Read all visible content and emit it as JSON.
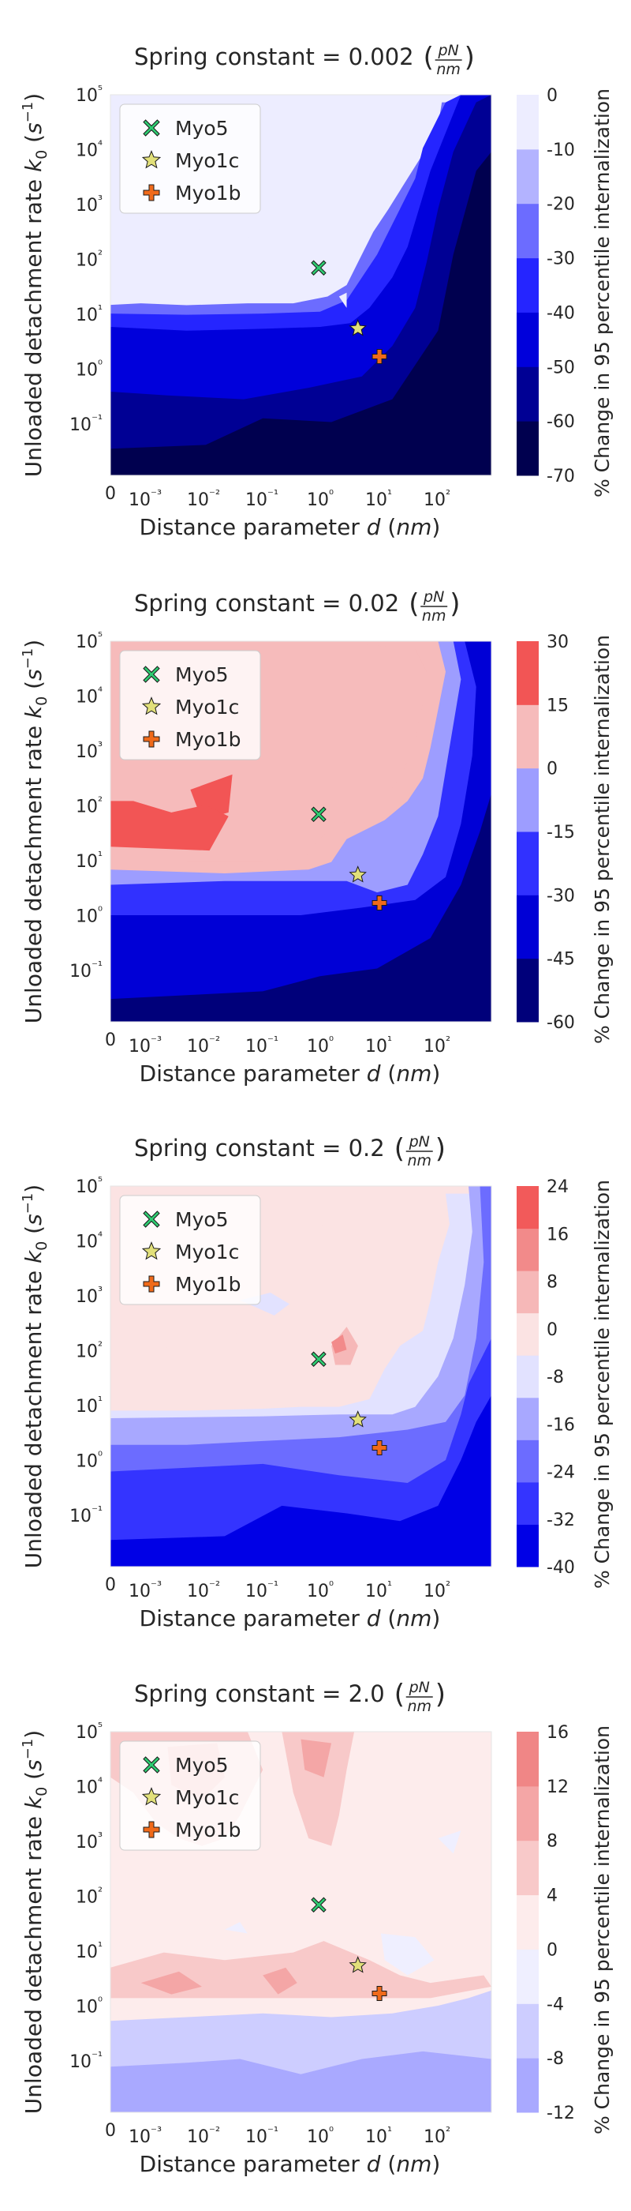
{
  "chart_data": [
    {
      "type": "heatmap",
      "subtype": "filled-contour",
      "title": "Spring constant = 0.002 (pN/nm)",
      "title_prefix": "Spring constant = 0.002",
      "unit_num": "pN",
      "unit_den": "nm",
      "xlabel": "Distance parameter d (nm)",
      "ylabel": "Unloaded detachment rate k0 (s⁻¹)",
      "colorbar_label": "% Change in 95 percentile internalization",
      "x_scale": "symlog",
      "y_scale": "log",
      "xlim": [
        0,
        400
      ],
      "ylim": [
        0.01,
        100000
      ],
      "x_ticks": [
        "0",
        "10⁻³",
        "10⁻²",
        "10⁻¹",
        "10⁰",
        "10¹",
        "10²"
      ],
      "y_ticks": [
        "10⁻¹",
        "10⁰",
        "10¹",
        "10²",
        "10³",
        "10⁴",
        "10⁵"
      ],
      "levels": [
        -70,
        -60,
        -50,
        -40,
        -30,
        -20,
        -10,
        0
      ],
      "colorbar_ticks": [
        "-70",
        "-60",
        "-50",
        "-40",
        "-30",
        "-20",
        "-10",
        "0"
      ],
      "level_colors": [
        "#00004f",
        "#000094",
        "#0000db",
        "#2525ff",
        "#6c6cff",
        "#b3b3ff",
        "#ededff"
      ],
      "grid": false,
      "legend_position": "upper-left",
      "legend": [
        {
          "name": "Myo5",
          "marker": "x-marker-icon",
          "color": "#2ecc71"
        },
        {
          "name": "Myo1c",
          "marker": "star-marker-icon",
          "color": "#e2e07a"
        },
        {
          "name": "Myo1b",
          "marker": "plus-marker-icon",
          "color": "#f06a1a"
        }
      ],
      "points": [
        {
          "name": "Myo5",
          "d": 1.0,
          "k0": 70
        },
        {
          "name": "Myo1c",
          "d": 4.7,
          "k0": 5.5
        },
        {
          "name": "Myo1b",
          "d": 11,
          "k0": 1.7
        }
      ]
    },
    {
      "type": "heatmap",
      "subtype": "filled-contour",
      "title": "Spring constant = 0.02 (pN/nm)",
      "title_prefix": "Spring constant = 0.02",
      "unit_num": "pN",
      "unit_den": "nm",
      "xlabel": "Distance parameter d (nm)",
      "ylabel": "Unloaded detachment rate k0 (s⁻¹)",
      "colorbar_label": "% Change in 95 percentile internalization",
      "x_scale": "symlog",
      "y_scale": "log",
      "xlim": [
        0,
        400
      ],
      "ylim": [
        0.01,
        100000
      ],
      "x_ticks": [
        "0",
        "10⁻³",
        "10⁻²",
        "10⁻¹",
        "10⁰",
        "10¹",
        "10²"
      ],
      "y_ticks": [
        "10⁻¹",
        "10⁰",
        "10¹",
        "10²",
        "10³",
        "10⁴",
        "10⁵"
      ],
      "levels": [
        -60,
        -45,
        -30,
        -15,
        0,
        15,
        30
      ],
      "colorbar_ticks": [
        "-60",
        "-45",
        "-30",
        "-15",
        "0",
        "15",
        "30"
      ],
      "level_colors": [
        "#00007a",
        "#0000d6",
        "#3131ff",
        "#9d9dff",
        "#f6bbbb",
        "#f25555"
      ],
      "grid": false,
      "legend_position": "upper-left",
      "legend": [
        {
          "name": "Myo5",
          "marker": "x-marker-icon",
          "color": "#2ecc71"
        },
        {
          "name": "Myo1c",
          "marker": "star-marker-icon",
          "color": "#e2e07a"
        },
        {
          "name": "Myo1b",
          "marker": "plus-marker-icon",
          "color": "#f06a1a"
        }
      ],
      "points": [
        {
          "name": "Myo5",
          "d": 1.0,
          "k0": 70
        },
        {
          "name": "Myo1c",
          "d": 4.7,
          "k0": 5.5
        },
        {
          "name": "Myo1b",
          "d": 11,
          "k0": 1.7
        }
      ]
    },
    {
      "type": "heatmap",
      "subtype": "filled-contour",
      "title": "Spring constant = 0.2 (pN/nm)",
      "title_prefix": "Spring constant = 0.2",
      "unit_num": "pN",
      "unit_den": "nm",
      "xlabel": "Distance parameter d (nm)",
      "ylabel": "Unloaded detachment rate k0 (s⁻¹)",
      "colorbar_label": "% Change in 95 percentile internalization",
      "x_scale": "symlog",
      "y_scale": "log",
      "xlim": [
        0,
        400
      ],
      "ylim": [
        0.01,
        100000
      ],
      "x_ticks": [
        "0",
        "10⁻³",
        "10⁻²",
        "10⁻¹",
        "10⁰",
        "10¹",
        "10²"
      ],
      "y_ticks": [
        "10⁻¹",
        "10⁰",
        "10¹",
        "10²",
        "10³",
        "10⁴",
        "10⁵"
      ],
      "levels": [
        -40,
        -32,
        -24,
        -16,
        -8,
        0,
        8,
        16,
        24
      ],
      "colorbar_ticks": [
        "-40",
        "-32",
        "-24",
        "-16",
        "-8",
        "0",
        "8",
        "16",
        "24"
      ],
      "level_colors": [
        "#0000e6",
        "#3434ff",
        "#6c6cff",
        "#a8a8ff",
        "#e2e2ff",
        "#fbe3e3",
        "#f6b8b8",
        "#f28a8a",
        "#f25a5a"
      ],
      "grid": false,
      "legend_position": "upper-left",
      "legend": [
        {
          "name": "Myo5",
          "marker": "x-marker-icon",
          "color": "#2ecc71"
        },
        {
          "name": "Myo1c",
          "marker": "star-marker-icon",
          "color": "#e2e07a"
        },
        {
          "name": "Myo1b",
          "marker": "plus-marker-icon",
          "color": "#f06a1a"
        }
      ],
      "points": [
        {
          "name": "Myo5",
          "d": 1.0,
          "k0": 70
        },
        {
          "name": "Myo1c",
          "d": 4.7,
          "k0": 5.5
        },
        {
          "name": "Myo1b",
          "d": 11,
          "k0": 1.7
        }
      ]
    },
    {
      "type": "heatmap",
      "subtype": "filled-contour",
      "title": "Spring constant = 2.0 (pN/nm)",
      "title_prefix": "Spring constant = 2.0",
      "unit_num": "pN",
      "unit_den": "nm",
      "xlabel": "Distance parameter d (nm)",
      "ylabel": "Unloaded detachment rate k0 (s⁻¹)",
      "colorbar_label": "% Change in 95 percentile internalization",
      "x_scale": "symlog",
      "y_scale": "log",
      "xlim": [
        0,
        400
      ],
      "ylim": [
        0.01,
        100000
      ],
      "x_ticks": [
        "0",
        "10⁻³",
        "10⁻²",
        "10⁻¹",
        "10⁰",
        "10¹",
        "10²"
      ],
      "y_ticks": [
        "10⁻¹",
        "10⁰",
        "10¹",
        "10²",
        "10³",
        "10⁴",
        "10⁵"
      ],
      "levels": [
        -12,
        -8,
        -4,
        0,
        4,
        8,
        12,
        16
      ],
      "colorbar_ticks": [
        "-12",
        "-8",
        "-4",
        "0",
        "4",
        "8",
        "12",
        "16"
      ],
      "level_colors": [
        "#a9a9ff",
        "#cdcdff",
        "#efefff",
        "#fdecec",
        "#f8c9c9",
        "#f4a6a6",
        "#f08686"
      ],
      "grid": false,
      "legend_position": "upper-left",
      "legend": [
        {
          "name": "Myo5",
          "marker": "x-marker-icon",
          "color": "#2ecc71"
        },
        {
          "name": "Myo1c",
          "marker": "star-marker-icon",
          "color": "#e2e07a"
        },
        {
          "name": "Myo1b",
          "marker": "plus-marker-icon",
          "color": "#f06a1a"
        }
      ],
      "points": [
        {
          "name": "Myo5",
          "d": 1.0,
          "k0": 70
        },
        {
          "name": "Myo1c",
          "d": 4.7,
          "k0": 5.5
        },
        {
          "name": "Myo1b",
          "d": 11,
          "k0": 1.7
        }
      ]
    }
  ]
}
